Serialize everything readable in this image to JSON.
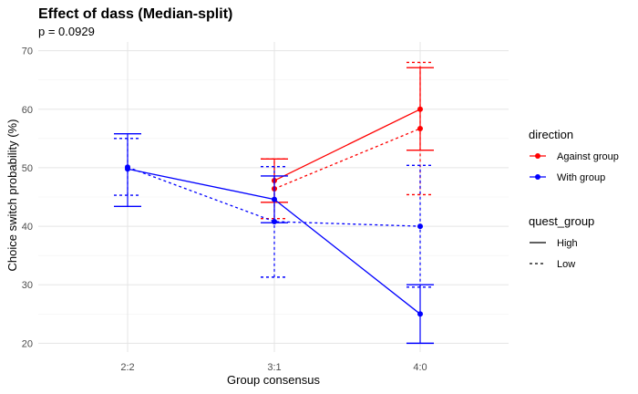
{
  "chart_data": {
    "type": "line",
    "title": "Effect of dass (Median-split)",
    "subtitle": "p = 0.0929",
    "xlabel": "Group consensus",
    "ylabel": "Choice switch probability (%)",
    "categories": [
      "2:2",
      "3:1",
      "4:0"
    ],
    "ylim": [
      18.5,
      71.5
    ],
    "yticks": [
      20,
      30,
      40,
      50,
      60,
      70
    ],
    "grid": true,
    "legends": [
      {
        "title": "direction",
        "entries": [
          {
            "label": "Against group",
            "color": "#ff0000"
          },
          {
            "label": "With group",
            "color": "#0000ff"
          }
        ]
      },
      {
        "title": "quest_group",
        "entries": [
          {
            "label": "High",
            "linetype": "solid"
          },
          {
            "label": "Low",
            "linetype": "dashed"
          }
        ]
      }
    ],
    "legend_position": "right",
    "series": [
      {
        "direction": "Against group",
        "quest_group": "High",
        "color": "#ff0000",
        "linetype": "solid",
        "x": [
          "3:1",
          "4:0"
        ],
        "values": [
          47.8,
          60.0
        ],
        "err_low": [
          44.1,
          53.0
        ],
        "err_high": [
          51.5,
          67.1
        ]
      },
      {
        "direction": "Against group",
        "quest_group": "Low",
        "color": "#ff0000",
        "linetype": "dashed",
        "x": [
          "3:1",
          "4:0"
        ],
        "values": [
          46.4,
          56.7
        ],
        "err_low": [
          41.3,
          45.4
        ],
        "err_high": [
          51.5,
          68.0
        ]
      },
      {
        "direction": "With group",
        "quest_group": "High",
        "color": "#0000ff",
        "linetype": "solid",
        "x": [
          "2:2",
          "3:1",
          "4:0"
        ],
        "values": [
          49.8,
          44.6,
          25.0
        ],
        "err_low": [
          43.4,
          40.6,
          20.0
        ],
        "err_high": [
          55.8,
          48.6,
          30.0
        ]
      },
      {
        "direction": "With group",
        "quest_group": "Low",
        "color": "#0000ff",
        "linetype": "dashed",
        "x": [
          "2:2",
          "3:1",
          "4:0"
        ],
        "values": [
          50.1,
          40.8,
          40.0
        ],
        "err_low": [
          45.3,
          31.3,
          29.6
        ],
        "err_high": [
          55.0,
          50.2,
          50.4
        ]
      }
    ]
  }
}
